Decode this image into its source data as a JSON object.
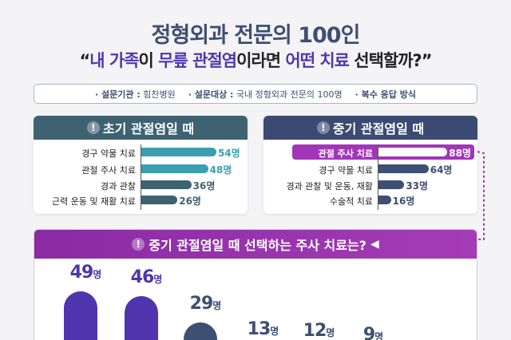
{
  "title": "정형외과 전문의 100인",
  "subtitle": {
    "q_open": "“",
    "p1": "내 가족",
    "p2": "이 ",
    "p3": "무릎 관절염",
    "p4": "이라면 ",
    "p5": "어떤 치료",
    "p6": " 선택할까?”"
  },
  "info": [
    {
      "k": "· 설문기관 :",
      "v": "힘찬병원"
    },
    {
      "k": "· 설문대상 :",
      "v": "국내 정형외과 전문의 100명"
    },
    {
      "k": "· 복수 응답 방식",
      "v": ""
    }
  ],
  "chart_data": [
    {
      "type": "bar",
      "orientation": "horizontal",
      "title": "초기 관절염일 때",
      "unit": "명",
      "categories": [
        "경구 약물 치료",
        "관절 주사 치료",
        "경과 관찰",
        "근력 운동 및 재활 치료"
      ],
      "values": [
        54,
        48,
        36,
        26
      ],
      "colors": [
        "#3aa0b0",
        "#3aa0b0",
        "#3d6272",
        "#3d6272"
      ]
    },
    {
      "type": "bar",
      "orientation": "horizontal",
      "title": "중기 관절염일 때",
      "unit": "명",
      "categories": [
        "관절 주사 치료",
        "경구 약물 치료",
        "경과 관찰 및 운동, 재활",
        "수술적 치료"
      ],
      "values": [
        88,
        64,
        33,
        16
      ],
      "highlight": "#a235b8",
      "colors": [
        "#ffffff",
        "#3d4f72",
        "#3d4f72",
        "#3d4f72"
      ]
    },
    {
      "type": "bar",
      "orientation": "vertical",
      "title": "중기 관절염일 때 선택하는 주사 치료는?",
      "unit": "명",
      "values": [
        49,
        46,
        29,
        13,
        12,
        9
      ],
      "colors": [
        "#4f35ae",
        "#4f35ae",
        "#3d4f72",
        "#3d4f72",
        "#3d4f72",
        "#3d4f72"
      ]
    }
  ],
  "colors": {
    "title": "#3d4f72",
    "accent": "#5037b0",
    "purple": "#a235b8",
    "teal_header": "#3e6272",
    "navy_header": "#3b4a72"
  }
}
